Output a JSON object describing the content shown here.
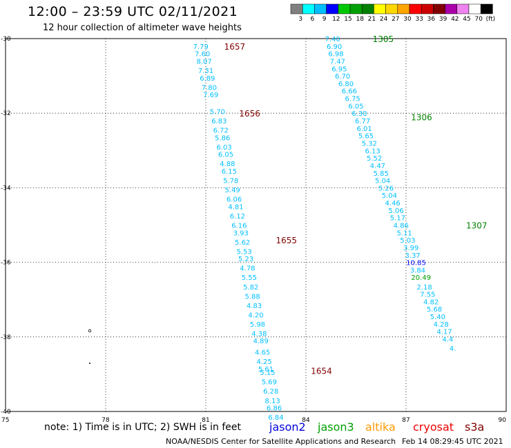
{
  "header": {
    "title": "12:00 – 23:59 UTC 02/11/2021",
    "subtitle": "12 hour collection of altimeter wave heights"
  },
  "footer": {
    "note": "note:  1) Time is in UTC; 2) SWH is in feet",
    "credit": "NOAA/NESDIS Center for Satellite Applications and Research",
    "timestamp": "Feb 14 08:29:45 UTC 2021"
  },
  "satellites": [
    {
      "name": "jason2",
      "color": "#0000dd"
    },
    {
      "name": "jason3",
      "color": "#00a000"
    },
    {
      "name": "altika",
      "color": "#ff9900"
    },
    {
      "name": "cryosat",
      "color": "#ee0000"
    },
    {
      "name": "s3a",
      "color": "#800000"
    }
  ],
  "legend": {
    "labels": [
      "3",
      "6",
      "9",
      "12",
      "15",
      "18",
      "21",
      "24",
      "27",
      "30",
      "33",
      "36",
      "39",
      "42",
      "45",
      "70",
      "(ft)"
    ],
    "colors": [
      "#808080",
      "#00ffff",
      "#00bfff",
      "#0000ff",
      "#00c800",
      "#00a000",
      "#008000",
      "#ffff00",
      "#ffd700",
      "#ffa500",
      "#ff0000",
      "#cc0000",
      "#800000",
      "#aa00aa",
      "#ee82ee",
      "#ffffff",
      "#000000"
    ]
  },
  "colors": {
    "swh_low": "#00bfff",
    "swh_mid": "#00a000",
    "swh_high": "#0000ff",
    "pass_label_red": "#800000",
    "pass_label_green": "#008000"
  },
  "chart_data": {
    "type": "scatter",
    "x_ticks": [
      "75",
      "78",
      "81",
      "84",
      "87",
      "90"
    ],
    "y_ticks": [
      "-30",
      "-32",
      "-34",
      "-36",
      "-38",
      "-40"
    ],
    "xlim": [
      75,
      90
    ],
    "ylim": [
      -40,
      -30
    ],
    "grid": true,
    "pass_labels": [
      {
        "text": "1657",
        "lon": 81.55,
        "lat": -30.2,
        "color": "#800000"
      },
      {
        "text": "1656",
        "lon": 82.0,
        "lat": -32.0,
        "color": "#800000"
      },
      {
        "text": "1655",
        "lon": 83.1,
        "lat": -35.4,
        "color": "#800000"
      },
      {
        "text": "1654",
        "lon": 84.15,
        "lat": -38.9,
        "color": "#800000"
      },
      {
        "text": "1305",
        "lon": 86.0,
        "lat": -30.0,
        "color": "#008000"
      },
      {
        "text": "1306",
        "lon": 87.15,
        "lat": -32.1,
        "color": "#008000"
      },
      {
        "text": "1307",
        "lon": 88.8,
        "lat": -35.0,
        "color": "#008000"
      }
    ],
    "series": [
      {
        "name": "pass 1657-1654",
        "points": [
          {
            "lon": 80.85,
            "lat": -30.2,
            "swh": "7.79"
          },
          {
            "lon": 80.9,
            "lat": -30.4,
            "swh": "7.60"
          },
          {
            "lon": 80.95,
            "lat": -30.6,
            "swh": "8.07"
          },
          {
            "lon": 81.0,
            "lat": -30.85,
            "swh": "7.31"
          },
          {
            "lon": 81.05,
            "lat": -31.05,
            "swh": "6.89"
          },
          {
            "lon": 81.1,
            "lat": -31.3,
            "swh": "7.80"
          },
          {
            "lon": 81.15,
            "lat": -31.5,
            "swh": "7.69"
          },
          {
            "lon": 81.35,
            "lat": -31.95,
            "swh": "5.70"
          },
          {
            "lon": 81.4,
            "lat": -32.2,
            "swh": "6.83"
          },
          {
            "lon": 81.45,
            "lat": -32.45,
            "swh": "6.72"
          },
          {
            "lon": 81.5,
            "lat": -32.65,
            "swh": "5.86"
          },
          {
            "lon": 81.55,
            "lat": -32.9,
            "swh": "6.03"
          },
          {
            "lon": 81.6,
            "lat": -33.1,
            "swh": "6.05"
          },
          {
            "lon": 81.65,
            "lat": -33.35,
            "swh": "4.88"
          },
          {
            "lon": 81.7,
            "lat": -33.55,
            "swh": "6.15"
          },
          {
            "lon": 81.75,
            "lat": -33.8,
            "swh": "5.78"
          },
          {
            "lon": 81.8,
            "lat": -34.05,
            "swh": "5.49"
          },
          {
            "lon": 81.85,
            "lat": -34.3,
            "swh": "6.06"
          },
          {
            "lon": 81.9,
            "lat": -34.5,
            "swh": "4.81"
          },
          {
            "lon": 81.95,
            "lat": -34.75,
            "swh": "6.12"
          },
          {
            "lon": 82.0,
            "lat": -35.0,
            "swh": "6.16"
          },
          {
            "lon": 82.05,
            "lat": -35.2,
            "swh": "3.93"
          },
          {
            "lon": 82.1,
            "lat": -35.45,
            "swh": "5.62"
          },
          {
            "lon": 82.15,
            "lat": -35.7,
            "swh": "5.53"
          },
          {
            "lon": 82.2,
            "lat": -35.9,
            "swh": "5.23"
          },
          {
            "lon": 82.25,
            "lat": -36.15,
            "swh": "4.78"
          },
          {
            "lon": 82.3,
            "lat": -36.4,
            "swh": "5.55"
          },
          {
            "lon": 82.35,
            "lat": -36.65,
            "swh": "5.82"
          },
          {
            "lon": 82.4,
            "lat": -36.9,
            "swh": "5.88"
          },
          {
            "lon": 82.45,
            "lat": -37.15,
            "swh": "4.83"
          },
          {
            "lon": 82.5,
            "lat": -37.4,
            "swh": "4.20"
          },
          {
            "lon": 82.55,
            "lat": -37.65,
            "swh": "5.98"
          },
          {
            "lon": 82.6,
            "lat": -37.9,
            "swh": "4.38"
          },
          {
            "lon": 82.65,
            "lat": -38.1,
            "swh": "4.89"
          },
          {
            "lon": 82.7,
            "lat": -38.4,
            "swh": "4.65"
          },
          {
            "lon": 82.75,
            "lat": -38.65,
            "swh": "4.25"
          },
          {
            "lon": 82.8,
            "lat": -38.85,
            "swh": "5.61"
          },
          {
            "lon": 82.85,
            "lat": -38.95,
            "swh": "5.15"
          },
          {
            "lon": 82.9,
            "lat": -39.2,
            "swh": "5.69"
          },
          {
            "lon": 82.95,
            "lat": -39.45,
            "swh": "6.28"
          },
          {
            "lon": 83.0,
            "lat": -39.7,
            "swh": "8.13"
          },
          {
            "lon": 83.05,
            "lat": -39.9,
            "swh": "6.86"
          },
          {
            "lon": 83.1,
            "lat": -40.15,
            "swh": "6.84"
          }
        ]
      },
      {
        "name": "pass 1305-1307",
        "points": [
          {
            "lon": 84.8,
            "lat": -30.0,
            "swh": "7.40"
          },
          {
            "lon": 84.85,
            "lat": -30.2,
            "swh": "6.90"
          },
          {
            "lon": 84.9,
            "lat": -30.4,
            "swh": "6.98"
          },
          {
            "lon": 84.95,
            "lat": -30.6,
            "swh": "7.47"
          },
          {
            "lon": 85.0,
            "lat": -30.8,
            "swh": "6.95"
          },
          {
            "lon": 85.1,
            "lat": -31.0,
            "swh": "6.70"
          },
          {
            "lon": 85.2,
            "lat": -31.2,
            "swh": "6.80"
          },
          {
            "lon": 85.3,
            "lat": -31.4,
            "swh": "6.66"
          },
          {
            "lon": 85.4,
            "lat": -31.6,
            "swh": "6.75"
          },
          {
            "lon": 85.5,
            "lat": -31.8,
            "swh": "6.05"
          },
          {
            "lon": 85.6,
            "lat": -32.0,
            "swh": "6.30"
          },
          {
            "lon": 85.7,
            "lat": -32.2,
            "swh": "6.77"
          },
          {
            "lon": 85.75,
            "lat": -32.4,
            "swh": "6.01"
          },
          {
            "lon": 85.8,
            "lat": -32.6,
            "swh": "5.65"
          },
          {
            "lon": 85.9,
            "lat": -32.8,
            "swh": "5.32"
          },
          {
            "lon": 86.0,
            "lat": -33.0,
            "swh": "6.13"
          },
          {
            "lon": 86.05,
            "lat": -33.2,
            "swh": "5.52"
          },
          {
            "lon": 86.15,
            "lat": -33.4,
            "swh": "4.47"
          },
          {
            "lon": 86.25,
            "lat": -33.6,
            "swh": "5.85"
          },
          {
            "lon": 86.3,
            "lat": -33.8,
            "swh": "5.04"
          },
          {
            "lon": 86.4,
            "lat": -34.0,
            "swh": "5.26"
          },
          {
            "lon": 86.5,
            "lat": -34.2,
            "swh": "5.04"
          },
          {
            "lon": 86.6,
            "lat": -34.4,
            "swh": "4.46"
          },
          {
            "lon": 86.7,
            "lat": -34.6,
            "swh": "5.06"
          },
          {
            "lon": 86.75,
            "lat": -34.8,
            "swh": "5.17"
          },
          {
            "lon": 86.85,
            "lat": -35.0,
            "swh": "4.86"
          },
          {
            "lon": 86.95,
            "lat": -35.2,
            "swh": "5.11"
          },
          {
            "lon": 87.05,
            "lat": -35.4,
            "swh": "5.03"
          },
          {
            "lon": 87.15,
            "lat": -35.6,
            "swh": "3.99"
          },
          {
            "lon": 87.2,
            "lat": -35.8,
            "swh": "3.37"
          },
          {
            "lon": 87.3,
            "lat": -36.0,
            "swh": "10.85"
          },
          {
            "lon": 87.35,
            "lat": -36.2,
            "swh": "3.84"
          },
          {
            "lon": 87.45,
            "lat": -36.4,
            "swh": "20.49"
          },
          {
            "lon": 87.55,
            "lat": -36.65,
            "swh": "2.18"
          },
          {
            "lon": 87.65,
            "lat": -36.85,
            "swh": "7.55"
          },
          {
            "lon": 87.75,
            "lat": -37.05,
            "swh": "4.82"
          },
          {
            "lon": 87.85,
            "lat": -37.25,
            "swh": "5.68"
          },
          {
            "lon": 87.95,
            "lat": -37.45,
            "swh": "5.40"
          },
          {
            "lon": 88.05,
            "lat": -37.65,
            "swh": "4.28"
          },
          {
            "lon": 88.15,
            "lat": -37.85,
            "swh": "4.17"
          },
          {
            "lon": 88.25,
            "lat": -38.05,
            "swh": "4.4"
          },
          {
            "lon": 88.4,
            "lat": -38.3,
            "swh": "4."
          }
        ]
      }
    ]
  }
}
